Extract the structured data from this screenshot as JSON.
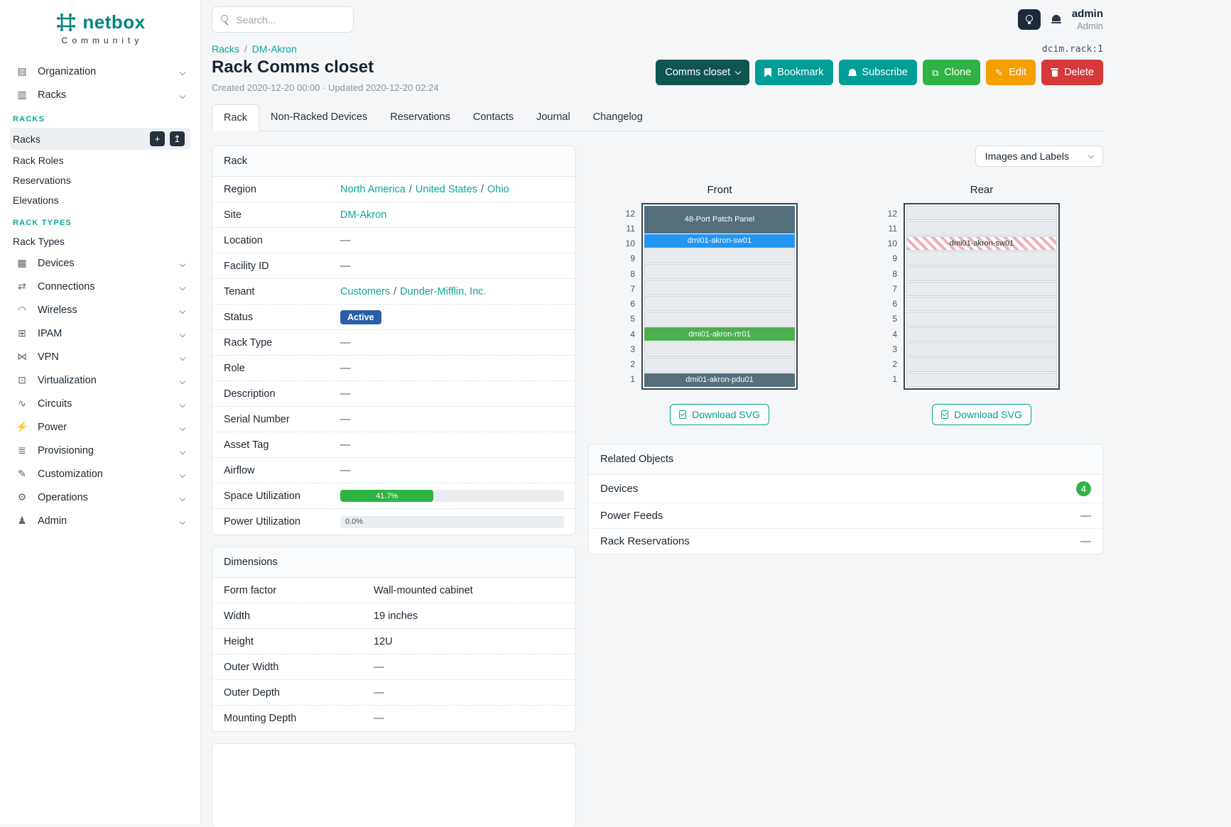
{
  "topbar": {
    "search_placeholder": "Search...",
    "username": "admin",
    "role": "Admin"
  },
  "sidebar": {
    "logo_text": "netbox",
    "logo_subtext": "Community",
    "organization": {
      "label": "Organization",
      "icon": "▤"
    },
    "racks_group": {
      "label": "Racks",
      "icon": "▥"
    },
    "racks_header": "RACKS",
    "racks_items": [
      "Racks",
      "Rack Roles",
      "Reservations",
      "Elevations"
    ],
    "rack_types_header": "RACK TYPES",
    "rack_types_items": [
      "Rack Types"
    ],
    "add_button": "+",
    "import_button": "↥",
    "groups": [
      {
        "label": "Devices",
        "icon": "▦"
      },
      {
        "label": "Connections",
        "icon": "⇄"
      },
      {
        "label": "Wireless",
        "icon": "◠"
      },
      {
        "label": "IPAM",
        "icon": "⊞"
      },
      {
        "label": "VPN",
        "icon": "⋈"
      },
      {
        "label": "Virtualization",
        "icon": "⊡"
      },
      {
        "label": "Circuits",
        "icon": "∿"
      },
      {
        "label": "Power",
        "icon": "⚡"
      },
      {
        "label": "Provisioning",
        "icon": "≣"
      },
      {
        "label": "Customization",
        "icon": "✎"
      },
      {
        "label": "Operations",
        "icon": "⚙"
      },
      {
        "label": "Admin",
        "icon": "♟"
      }
    ]
  },
  "breadcrumb": {
    "parent": "Racks",
    "separator": "/",
    "current": "DM-Akron"
  },
  "object_ref": "dcim.rack:1",
  "page": {
    "title": "Rack Comms closet",
    "meta": "Created 2020-12-20 00:00 · Updated 2020-12-20 02:24"
  },
  "actions": {
    "context_label": "Comms closet",
    "bookmark": "Bookmark",
    "subscribe": "Subscribe",
    "clone": "Clone",
    "edit": "Edit",
    "delete": "Delete"
  },
  "tabs": [
    "Rack",
    "Non-Racked Devices",
    "Reservations",
    "Contacts",
    "Journal",
    "Changelog"
  ],
  "rack_panel": {
    "title": "Rack",
    "region": {
      "label": "Region",
      "separator": "/",
      "links": [
        "North America",
        "United States",
        "Ohio"
      ]
    },
    "site": {
      "label": "Site",
      "link": "DM-Akron"
    },
    "location": {
      "label": "Location",
      "value": "—"
    },
    "facility_id": {
      "label": "Facility ID",
      "value": "—"
    },
    "tenant": {
      "label": "Tenant",
      "separator": "/",
      "links": [
        "Customers",
        "Dunder-Mifflin, Inc."
      ]
    },
    "status": {
      "label": "Status",
      "badge": "Active",
      "badge_color": "#2a5fa8"
    },
    "rack_type": {
      "label": "Rack Type",
      "value": "—"
    },
    "role": {
      "label": "Role",
      "value": "—"
    },
    "description": {
      "label": "Description",
      "value": "—"
    },
    "serial": {
      "label": "Serial Number",
      "value": "—"
    },
    "asset_tag": {
      "label": "Asset Tag",
      "value": "—"
    },
    "airflow": {
      "label": "Airflow",
      "value": "—"
    },
    "space_utilization": {
      "label": "Space Utilization",
      "percent": 41.7,
      "percent_label": "41.7%"
    },
    "power_utilization": {
      "label": "Power Utilization",
      "percent": 0,
      "percent_label": "0.0%"
    }
  },
  "dimensions_panel": {
    "title": "Dimensions",
    "form_factor": {
      "label": "Form factor",
      "value": "Wall-mounted cabinet"
    },
    "width": {
      "label": "Width",
      "value": "19 inches"
    },
    "height": {
      "label": "Height",
      "value": "12U"
    },
    "outer_width": {
      "label": "Outer Width",
      "value": "—"
    },
    "outer_depth": {
      "label": "Outer Depth",
      "value": "—"
    },
    "mounting_depth": {
      "label": "Mounting Depth",
      "value": "—"
    }
  },
  "elevations": {
    "filter_label": "Images and Labels",
    "download_label": "Download SVG",
    "unit_numbers": [
      "12",
      "11",
      "10",
      "9",
      "8",
      "7",
      "6",
      "5",
      "4",
      "3",
      "2",
      "1"
    ],
    "front": {
      "title": "Front",
      "devices": [
        {
          "label": "48-Port Patch Panel",
          "units": "12-11",
          "color": "#546e7a",
          "text_color": "#ffffff"
        },
        {
          "label": "dmi01-akron-sw01",
          "units": "10",
          "color": "#2196f3",
          "text_color": "#ffffff"
        },
        {
          "label": "dmi01-akron-rtr01",
          "units": "4",
          "color": "#4caf50",
          "text_color": "#ffffff"
        },
        {
          "label": "dmi01-akron-pdu01",
          "units": "1",
          "color": "#546e7a",
          "text_color": "#ffffff"
        }
      ]
    },
    "rear": {
      "title": "Rear",
      "devices": [
        {
          "label": "dmi01-akron-sw01",
          "units": "10",
          "style": "hatched"
        }
      ]
    }
  },
  "related_objects": {
    "title": "Related Objects",
    "rows": [
      {
        "label": "Devices",
        "count": "4"
      },
      {
        "label": "Power Feeds",
        "value": "—"
      },
      {
        "label": "Rack Reservations",
        "value": "—"
      }
    ]
  },
  "colors": {
    "brand_teal": "#00857e",
    "link_teal": "#0ca59b",
    "button_teal": "#009e96",
    "button_context_dark": "#0f5550",
    "button_green": "#2fb344",
    "button_amber": "#f59f00",
    "button_red": "#d63939",
    "status_active_blue": "#2a5fa8",
    "progress_green": "#2fb344",
    "device_slate": "#546e7a",
    "device_blue": "#2196f3",
    "device_green": "#4caf50",
    "count_badge_green": "#2fb344"
  }
}
